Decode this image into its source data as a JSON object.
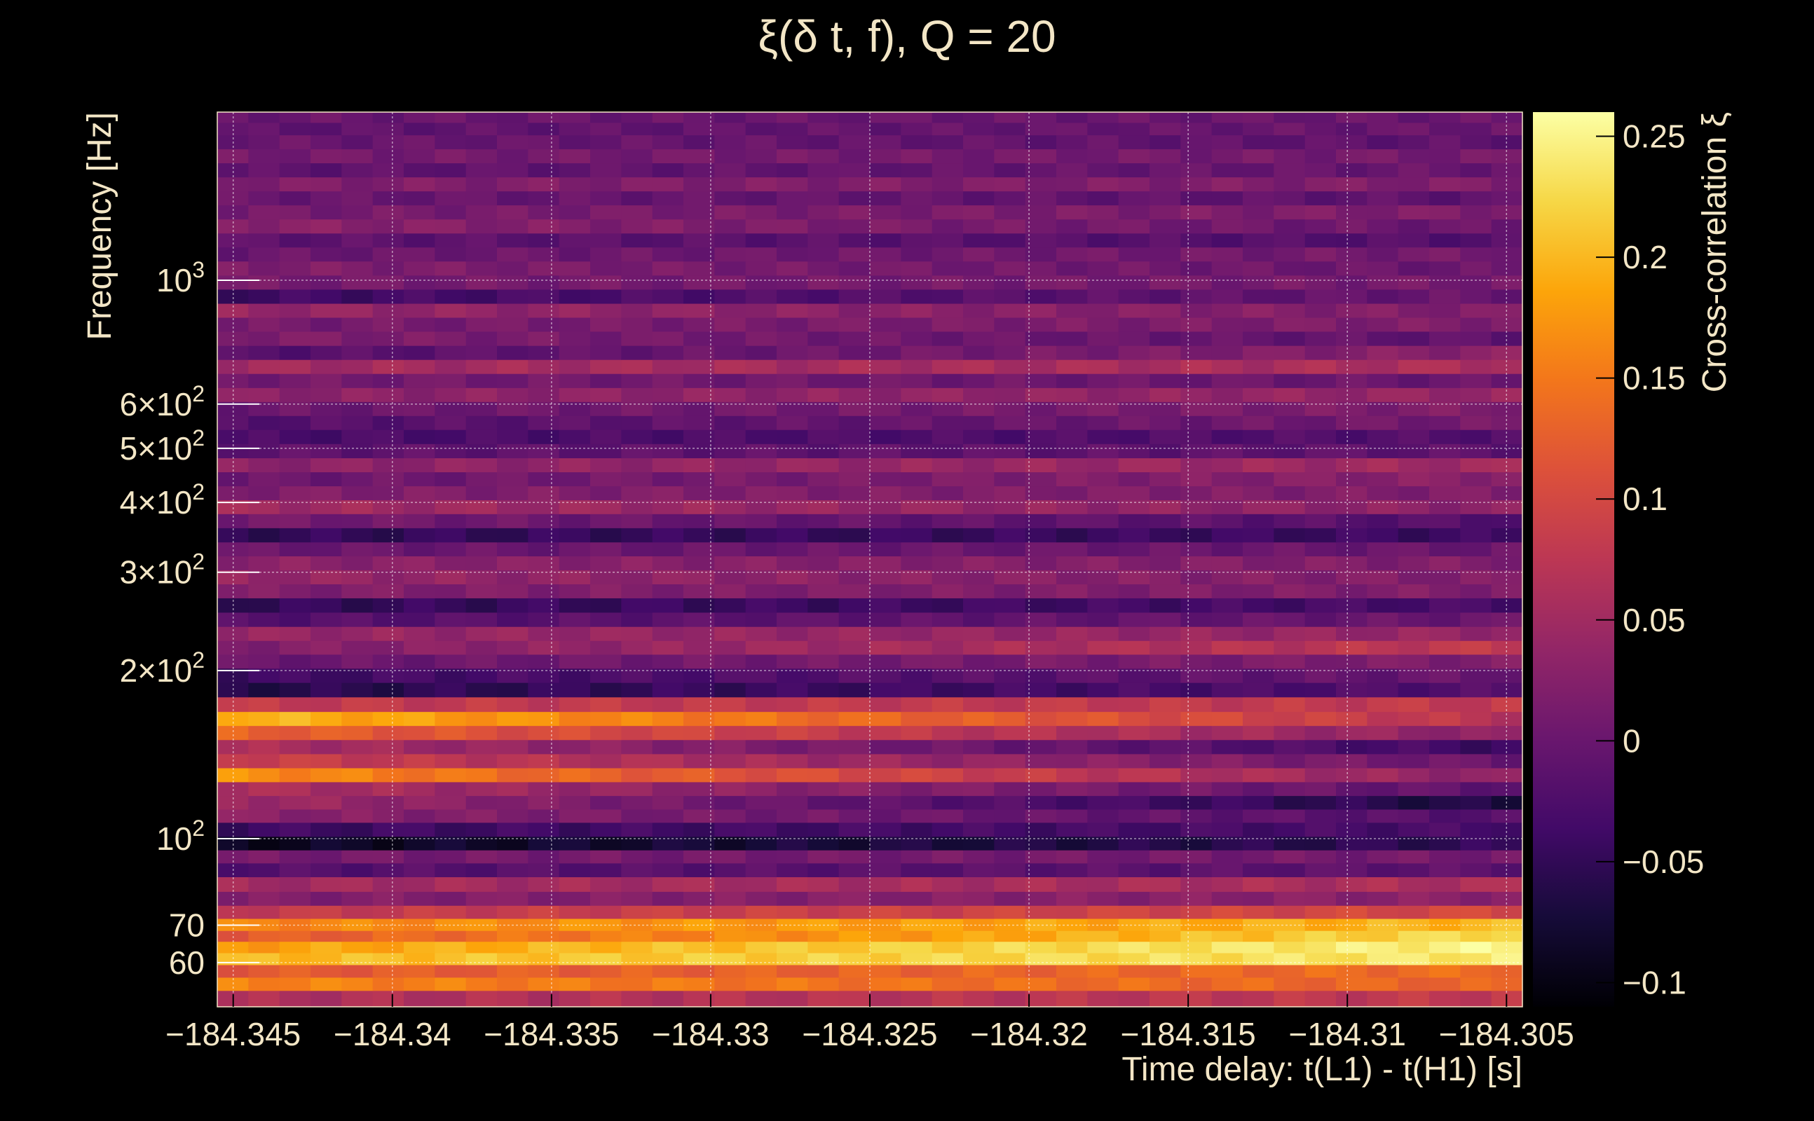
{
  "chart_data": {
    "type": "heatmap",
    "title": "ξ(δ t, f), Q = 20",
    "xlabel": "Time delay: t(L1) - t(H1) [s]",
    "ylabel": "Frequency [Hz]",
    "zlabel": "Cross-correlation ξ",
    "x_scale": "linear",
    "y_scale": "log",
    "z_scale": "linear",
    "xlim": [
      -184.3455,
      -184.3045
    ],
    "ylim": [
      50,
      2000
    ],
    "zlim": [
      -0.11,
      0.26
    ],
    "grid": true,
    "colormap": "inferno",
    "x_ticks": [
      {
        "value": -184.345,
        "label": "−184.345"
      },
      {
        "value": -184.34,
        "label": "−184.34"
      },
      {
        "value": -184.335,
        "label": "−184.335"
      },
      {
        "value": -184.33,
        "label": "−184.33"
      },
      {
        "value": -184.325,
        "label": "−184.325"
      },
      {
        "value": -184.32,
        "label": "−184.32"
      },
      {
        "value": -184.315,
        "label": "−184.315"
      },
      {
        "value": -184.31,
        "label": "−184.31"
      },
      {
        "value": -184.305,
        "label": "−184.305"
      }
    ],
    "y_ticks": [
      {
        "value": 60,
        "label": "60",
        "base": "60",
        "exp": ""
      },
      {
        "value": 70,
        "label": "70",
        "base": "70",
        "exp": ""
      },
      {
        "value": 100,
        "label": "10^2",
        "base": "10",
        "exp": "2"
      },
      {
        "value": 200,
        "label": "2×10^2",
        "base": "2×10",
        "exp": "2"
      },
      {
        "value": 300,
        "label": "3×10^2",
        "base": "3×10",
        "exp": "2"
      },
      {
        "value": 400,
        "label": "4×10^2",
        "base": "4×10",
        "exp": "2"
      },
      {
        "value": 500,
        "label": "5×10^2",
        "base": "5×10",
        "exp": "2"
      },
      {
        "value": 600,
        "label": "6×10^2",
        "base": "6×10",
        "exp": "2"
      },
      {
        "value": 1000,
        "label": "10^3",
        "base": "10",
        "exp": "3"
      }
    ],
    "z_ticks": [
      {
        "value": -0.1,
        "label": "−0.1"
      },
      {
        "value": -0.05,
        "label": "−0.05"
      },
      {
        "value": 0,
        "label": "0"
      },
      {
        "value": 0.05,
        "label": "0.05"
      },
      {
        "value": 0.1,
        "label": "0.1"
      },
      {
        "value": 0.15,
        "label": "0.15"
      },
      {
        "value": 0.2,
        "label": "0.2"
      },
      {
        "value": 0.25,
        "label": "0.25"
      }
    ],
    "x_bins": 42,
    "frequency_rows": [
      {
        "freq_hz": 52,
        "start": 0.06,
        "end": 0.08
      },
      {
        "freq_hz": 55,
        "start": 0.16,
        "end": 0.13
      },
      {
        "freq_hz": 58,
        "start": 0.12,
        "end": 0.14
      },
      {
        "freq_hz": 61,
        "start": 0.2,
        "end": 0.24
      },
      {
        "freq_hz": 64,
        "start": 0.18,
        "end": 0.25
      },
      {
        "freq_hz": 67,
        "start": 0.12,
        "end": 0.23
      },
      {
        "freq_hz": 70,
        "start": 0.16,
        "end": 0.2
      },
      {
        "freq_hz": 74,
        "start": 0.08,
        "end": 0.1
      },
      {
        "freq_hz": 78,
        "start": 0.02,
        "end": 0.03
      },
      {
        "freq_hz": 83,
        "start": 0.05,
        "end": 0.06
      },
      {
        "freq_hz": 88,
        "start": -0.02,
        "end": -0.01
      },
      {
        "freq_hz": 93,
        "start": 0.01,
        "end": 0.01
      },
      {
        "freq_hz": 98,
        "start": -0.09,
        "end": -0.05
      },
      {
        "freq_hz": 104,
        "start": -0.04,
        "end": -0.03
      },
      {
        "freq_hz": 110,
        "start": 0.03,
        "end": -0.02
      },
      {
        "freq_hz": 116,
        "start": 0.05,
        "end": -0.07
      },
      {
        "freq_hz": 123,
        "start": 0.06,
        "end": -0.01
      },
      {
        "freq_hz": 130,
        "start": 0.17,
        "end": 0.03
      },
      {
        "freq_hz": 138,
        "start": 0.09,
        "end": 0.0
      },
      {
        "freq_hz": 146,
        "start": 0.06,
        "end": -0.04
      },
      {
        "freq_hz": 155,
        "start": 0.13,
        "end": 0.03
      },
      {
        "freq_hz": 164,
        "start": 0.2,
        "end": 0.07
      },
      {
        "freq_hz": 174,
        "start": 0.08,
        "end": 0.08
      },
      {
        "freq_hz": 185,
        "start": -0.06,
        "end": -0.02
      },
      {
        "freq_hz": 196,
        "start": -0.04,
        "end": 0.0
      },
      {
        "freq_hz": 208,
        "start": 0.0,
        "end": 0.02
      },
      {
        "freq_hz": 220,
        "start": 0.02,
        "end": 0.08
      },
      {
        "freq_hz": 233,
        "start": 0.04,
        "end": 0.04
      },
      {
        "freq_hz": 247,
        "start": -0.02,
        "end": 0.0
      },
      {
        "freq_hz": 262,
        "start": -0.05,
        "end": -0.03
      },
      {
        "freq_hz": 278,
        "start": 0.02,
        "end": 0.02
      },
      {
        "freq_hz": 294,
        "start": 0.04,
        "end": 0.02
      },
      {
        "freq_hz": 312,
        "start": 0.03,
        "end": 0.02
      },
      {
        "freq_hz": 330,
        "start": 0.0,
        "end": 0.0
      },
      {
        "freq_hz": 350,
        "start": -0.05,
        "end": -0.04
      },
      {
        "freq_hz": 371,
        "start": 0.01,
        "end": -0.02
      },
      {
        "freq_hz": 393,
        "start": 0.05,
        "end": 0.03
      },
      {
        "freq_hz": 416,
        "start": 0.02,
        "end": 0.02
      },
      {
        "freq_hz": 441,
        "start": 0.0,
        "end": 0.03
      },
      {
        "freq_hz": 467,
        "start": 0.03,
        "end": 0.05
      },
      {
        "freq_hz": 495,
        "start": -0.01,
        "end": -0.01
      },
      {
        "freq_hz": 525,
        "start": -0.03,
        "end": -0.02
      },
      {
        "freq_hz": 556,
        "start": -0.02,
        "end": 0.01
      },
      {
        "freq_hz": 589,
        "start": 0.0,
        "end": 0.02
      },
      {
        "freq_hz": 624,
        "start": 0.03,
        "end": 0.04
      },
      {
        "freq_hz": 661,
        "start": 0.01,
        "end": 0.0
      },
      {
        "freq_hz": 701,
        "start": 0.05,
        "end": 0.06
      },
      {
        "freq_hz": 742,
        "start": -0.02,
        "end": 0.03
      },
      {
        "freq_hz": 787,
        "start": 0.02,
        "end": -0.01
      },
      {
        "freq_hz": 834,
        "start": 0.01,
        "end": 0.02
      },
      {
        "freq_hz": 883,
        "start": 0.04,
        "end": 0.02
      },
      {
        "freq_hz": 936,
        "start": -0.04,
        "end": 0.0
      },
      {
        "freq_hz": 992,
        "start": 0.01,
        "end": 0.01
      },
      {
        "freq_hz": 1051,
        "start": 0.02,
        "end": 0.0
      },
      {
        "freq_hz": 1114,
        "start": 0.0,
        "end": 0.01
      },
      {
        "freq_hz": 1180,
        "start": -0.01,
        "end": -0.02
      },
      {
        "freq_hz": 1250,
        "start": 0.03,
        "end": 0.0
      },
      {
        "freq_hz": 1325,
        "start": 0.01,
        "end": 0.02
      },
      {
        "freq_hz": 1404,
        "start": 0.0,
        "end": -0.01
      },
      {
        "freq_hz": 1487,
        "start": 0.02,
        "end": 0.02
      },
      {
        "freq_hz": 1576,
        "start": -0.01,
        "end": 0.0
      },
      {
        "freq_hz": 1670,
        "start": 0.01,
        "end": 0.01
      },
      {
        "freq_hz": 1769,
        "start": 0.0,
        "end": -0.01
      },
      {
        "freq_hz": 1874,
        "start": -0.01,
        "end": 0.0
      },
      {
        "freq_hz": 1960,
        "start": 0.0,
        "end": 0.0
      }
    ]
  }
}
